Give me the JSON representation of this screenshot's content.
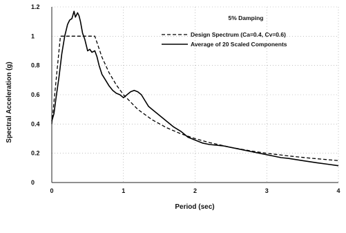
{
  "chart_data": {
    "type": "line",
    "title": "",
    "annotation": "5% Damping",
    "xlabel": "Period (sec)",
    "ylabel": "Spectral Acceleration (g)",
    "xlim": [
      0,
      4
    ],
    "ylim": [
      0,
      1.2
    ],
    "x_ticks": [
      "0",
      "1",
      "2",
      "3",
      "4"
    ],
    "y_ticks": [
      "0",
      "0.2",
      "0.4",
      "0.6",
      "0.8",
      "1",
      "1.2"
    ],
    "grid": true,
    "legend_position": "top-right",
    "series": [
      {
        "name": "Design Spectrum (Ca=0.4, Cv=0.6)",
        "style": "dashed",
        "color": "#000000",
        "x": [
          0,
          0.12,
          0.2,
          0.3,
          0.4,
          0.5,
          0.6,
          0.7,
          0.8,
          0.9,
          1.0,
          1.2,
          1.4,
          1.6,
          1.8,
          2.0,
          2.2,
          2.5,
          2.8,
          3.0,
          3.3,
          3.6,
          4.0
        ],
        "y": [
          0.4,
          1.0,
          1.0,
          1.0,
          1.0,
          1.0,
          1.0,
          0.857,
          0.75,
          0.667,
          0.6,
          0.5,
          0.429,
          0.375,
          0.333,
          0.3,
          0.273,
          0.24,
          0.214,
          0.2,
          0.182,
          0.167,
          0.15
        ]
      },
      {
        "name": "Average of 20 Scaled Components",
        "style": "solid",
        "color": "#000000",
        "x": [
          0,
          0.03,
          0.06,
          0.1,
          0.14,
          0.18,
          0.22,
          0.25,
          0.28,
          0.31,
          0.33,
          0.36,
          0.38,
          0.4,
          0.43,
          0.46,
          0.5,
          0.53,
          0.56,
          0.6,
          0.63,
          0.66,
          0.7,
          0.75,
          0.8,
          0.85,
          0.9,
          0.95,
          1.0,
          1.05,
          1.1,
          1.15,
          1.2,
          1.25,
          1.3,
          1.35,
          1.4,
          1.5,
          1.6,
          1.7,
          1.8,
          1.9,
          2.0,
          2.1,
          2.2,
          2.4,
          2.6,
          2.8,
          3.0,
          3.1,
          3.2,
          3.3,
          3.5,
          3.7,
          3.85,
          4.0
        ],
        "y": [
          0.42,
          0.47,
          0.58,
          0.72,
          0.88,
          1.0,
          1.08,
          1.11,
          1.12,
          1.17,
          1.13,
          1.16,
          1.14,
          1.1,
          1.02,
          0.98,
          0.9,
          0.91,
          0.89,
          0.9,
          0.86,
          0.8,
          0.74,
          0.7,
          0.66,
          0.63,
          0.61,
          0.6,
          0.58,
          0.6,
          0.62,
          0.63,
          0.62,
          0.6,
          0.56,
          0.52,
          0.5,
          0.46,
          0.42,
          0.38,
          0.35,
          0.31,
          0.29,
          0.27,
          0.26,
          0.25,
          0.23,
          0.21,
          0.19,
          0.18,
          0.17,
          0.165,
          0.15,
          0.135,
          0.125,
          0.115
        ]
      }
    ]
  }
}
